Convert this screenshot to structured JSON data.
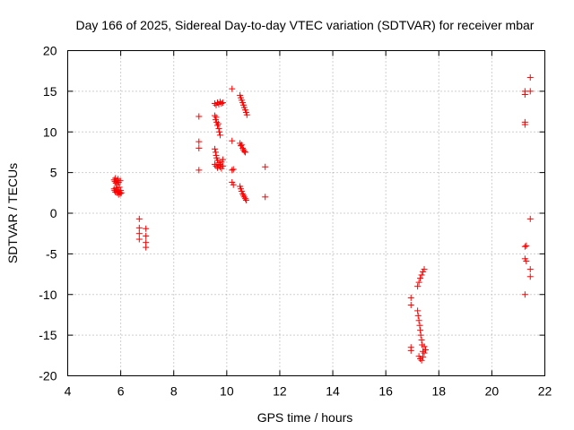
{
  "chart_data": {
    "type": "scatter",
    "title": "Day 166 of 2025, Sidereal Day-to-day VTEC variation (SDTVAR) for receiver mbar",
    "xlabel": "GPS time / hours",
    "ylabel": "SDTVAR / TECUs",
    "xlim": [
      4,
      22
    ],
    "ylim": [
      -20,
      20
    ],
    "xticks": [
      "4",
      "6",
      "8",
      "10",
      "12",
      "14",
      "16",
      "18",
      "20",
      "22"
    ],
    "yticks": [
      "20",
      "15",
      "10",
      "5",
      "0",
      "-5",
      "-10",
      "-15",
      "-20"
    ],
    "grid": true,
    "marker": "+",
    "color": "#ff0000",
    "series": [
      {
        "name": "SDTVAR",
        "points": [
          [
            5.75,
            4.1
          ],
          [
            5.78,
            3.9
          ],
          [
            5.8,
            4.3
          ],
          [
            5.82,
            3.7
          ],
          [
            5.85,
            4.0
          ],
          [
            5.88,
            3.5
          ],
          [
            5.9,
            4.2
          ],
          [
            5.92,
            3.8
          ],
          [
            5.95,
            3.2
          ],
          [
            5.98,
            4.0
          ],
          [
            5.75,
            3.0
          ],
          [
            5.77,
            2.8
          ],
          [
            5.8,
            2.6
          ],
          [
            5.82,
            3.1
          ],
          [
            5.85,
            2.9
          ],
          [
            5.87,
            2.5
          ],
          [
            5.9,
            2.7
          ],
          [
            5.92,
            2.3
          ],
          [
            5.95,
            2.6
          ],
          [
            5.98,
            2.4
          ],
          [
            6.0,
            2.8
          ],
          [
            6.02,
            2.5
          ],
          [
            6.7,
            -0.7
          ],
          [
            6.7,
            -1.8
          ],
          [
            6.7,
            -2.5
          ],
          [
            6.7,
            -3.2
          ],
          [
            6.95,
            -1.9
          ],
          [
            6.95,
            -2.8
          ],
          [
            6.95,
            -3.6
          ],
          [
            6.95,
            -4.2
          ],
          [
            8.95,
            11.9
          ],
          [
            8.95,
            8.8
          ],
          [
            8.95,
            8.0
          ],
          [
            8.95,
            5.3
          ],
          [
            9.55,
            13.5
          ],
          [
            9.6,
            13.3
          ],
          [
            9.65,
            13.6
          ],
          [
            9.7,
            13.4
          ],
          [
            9.75,
            13.7
          ],
          [
            9.8,
            13.5
          ],
          [
            9.85,
            13.6
          ],
          [
            9.55,
            12.0
          ],
          [
            9.58,
            11.5
          ],
          [
            9.62,
            11.2
          ],
          [
            9.65,
            10.8
          ],
          [
            9.7,
            10.4
          ],
          [
            9.72,
            10.0
          ],
          [
            9.75,
            9.6
          ],
          [
            9.68,
            11.0
          ],
          [
            9.6,
            11.8
          ],
          [
            9.55,
            7.9
          ],
          [
            9.58,
            7.5
          ],
          [
            9.6,
            7.1
          ],
          [
            9.62,
            6.8
          ],
          [
            9.65,
            6.5
          ],
          [
            9.7,
            6.2
          ],
          [
            9.75,
            6.0
          ],
          [
            9.8,
            6.3
          ],
          [
            9.85,
            6.6
          ],
          [
            9.55,
            6.0
          ],
          [
            9.6,
            5.8
          ],
          [
            9.65,
            5.6
          ],
          [
            9.7,
            5.9
          ],
          [
            9.75,
            5.7
          ],
          [
            9.8,
            5.5
          ],
          [
            9.85,
            5.8
          ],
          [
            10.2,
            15.3
          ],
          [
            10.2,
            8.9
          ],
          [
            10.2,
            5.3
          ],
          [
            10.25,
            5.4
          ],
          [
            10.2,
            3.8
          ],
          [
            10.25,
            3.5
          ],
          [
            10.5,
            14.5
          ],
          [
            10.53,
            14.2
          ],
          [
            10.56,
            13.9
          ],
          [
            10.6,
            13.6
          ],
          [
            10.63,
            13.3
          ],
          [
            10.66,
            13.0
          ],
          [
            10.7,
            12.7
          ],
          [
            10.73,
            12.4
          ],
          [
            10.76,
            12.1
          ],
          [
            10.5,
            8.6
          ],
          [
            10.53,
            8.3
          ],
          [
            10.56,
            8.4
          ],
          [
            10.6,
            8.0
          ],
          [
            10.63,
            7.8
          ],
          [
            10.66,
            7.6
          ],
          [
            10.7,
            7.5
          ],
          [
            10.5,
            3.3
          ],
          [
            10.53,
            3.0
          ],
          [
            10.56,
            2.7
          ],
          [
            10.6,
            2.4
          ],
          [
            10.63,
            2.2
          ],
          [
            10.66,
            2.0
          ],
          [
            10.7,
            1.8
          ],
          [
            10.73,
            1.6
          ],
          [
            11.45,
            5.7
          ],
          [
            11.45,
            2.0
          ],
          [
            16.95,
            -10.4
          ],
          [
            16.95,
            -11.3
          ],
          [
            16.95,
            -16.5
          ],
          [
            16.95,
            -16.9
          ],
          [
            17.2,
            -9.0
          ],
          [
            17.25,
            -8.5
          ],
          [
            17.3,
            -8.0
          ],
          [
            17.35,
            -7.6
          ],
          [
            17.4,
            -7.2
          ],
          [
            17.45,
            -6.9
          ],
          [
            17.2,
            -12.0
          ],
          [
            17.22,
            -12.6
          ],
          [
            17.25,
            -13.2
          ],
          [
            17.28,
            -13.8
          ],
          [
            17.3,
            -14.4
          ],
          [
            17.32,
            -15.0
          ],
          [
            17.35,
            -15.6
          ],
          [
            17.37,
            -16.2
          ],
          [
            17.25,
            -17.6
          ],
          [
            17.3,
            -17.9
          ],
          [
            17.35,
            -18.1
          ],
          [
            17.4,
            -17.7
          ],
          [
            17.45,
            -17.2
          ],
          [
            17.5,
            -16.8
          ],
          [
            17.45,
            -16.4
          ],
          [
            17.4,
            -17.0
          ],
          [
            21.25,
            15.0
          ],
          [
            21.25,
            14.6
          ],
          [
            21.45,
            16.7
          ],
          [
            21.45,
            15.0
          ],
          [
            21.25,
            11.2
          ],
          [
            21.25,
            10.9
          ],
          [
            21.45,
            -0.7
          ],
          [
            21.25,
            -4.1
          ],
          [
            21.3,
            -4.0
          ],
          [
            21.25,
            -5.6
          ],
          [
            21.3,
            -5.9
          ],
          [
            21.45,
            -6.9
          ],
          [
            21.45,
            -7.8
          ],
          [
            21.25,
            -10.0
          ]
        ]
      }
    ]
  }
}
